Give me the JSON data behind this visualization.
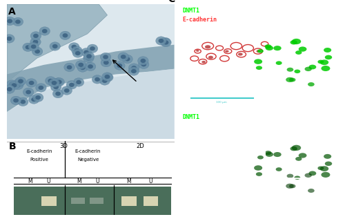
{
  "fig_width": 5.0,
  "fig_height": 3.14,
  "bg_color": "#ffffff",
  "panel_A": {
    "label": "A",
    "bg_light": "#dce8ee",
    "stroma_upper_color": "#a8bec8",
    "stroma_lower_color": "#c8d8e0",
    "cell_layer_color": "#8aaabb",
    "cell_fill": "#6a90a8",
    "cell_edge": "#4a7090",
    "nucleus_fill": "#3a6080"
  },
  "panel_B": {
    "label": "B",
    "bg_white": "#ffffff",
    "gel_bg": "#4a6e5a",
    "band_bright": "#e0dab8",
    "band_faint": "#8a9e90",
    "label_3D": "3D",
    "label_2D": "2D",
    "label_ecad_pos": "E-cadherin\nPositive",
    "label_ecad_neg": "E-cadherin\nNegative",
    "mu_labels": [
      "M",
      "U",
      "M",
      "U",
      "M",
      "U"
    ]
  },
  "panel_C1": {
    "label": "C",
    "bg": "#000000",
    "dnmt1_label": "DNMT1",
    "ecad_label": "E-cadherin",
    "dnmt1_color": "#00ff00",
    "ecad_color": "#ff3333",
    "scalebar_color": "#44cccc"
  },
  "panel_C2": {
    "bg": "#000000",
    "dnmt1_label": "DNMT1",
    "dnmt1_color": "#00ff00",
    "box_color": "#ffffff",
    "cell_color": "#005500"
  }
}
